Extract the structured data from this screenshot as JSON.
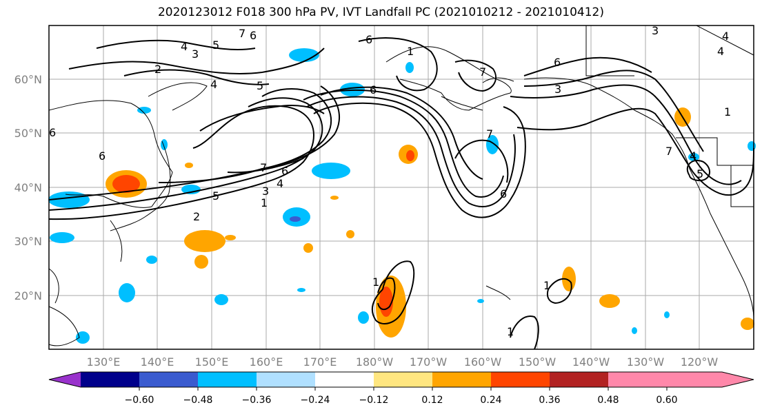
{
  "title": "2020123012 F018 300 hPa PV, IVT Landfall PC (2021010212 - 2021010412)",
  "lat_labels": [
    "60°N",
    "50°N",
    "40°N",
    "30°N",
    "20°N"
  ],
  "lon_labels": [
    "130°E",
    "140°E",
    "150°E",
    "160°E",
    "170°E",
    "180°W",
    "170°W",
    "160°W",
    "150°W",
    "140°W",
    "130°W",
    "120°W"
  ],
  "colorbar": {
    "ticks": [
      "−0.60",
      "−0.48",
      "−0.36",
      "−0.24",
      "−0.12",
      "0.12",
      "0.24",
      "0.36",
      "0.48",
      "0.60"
    ],
    "colors": [
      "#9932cc",
      "#00008b",
      "#3a5bcf",
      "#00bfff",
      "#b0e0ff",
      "#ffffff",
      "#ffe680",
      "#ffa500",
      "#ff4500",
      "#b22222",
      "#ff88aa"
    ]
  },
  "contour_labels": [
    "1",
    "2",
    "3",
    "4",
    "5",
    "6",
    "7"
  ],
  "colors": {
    "land": "#000000",
    "grid": "#aaaaaa",
    "contour": "#000000"
  }
}
